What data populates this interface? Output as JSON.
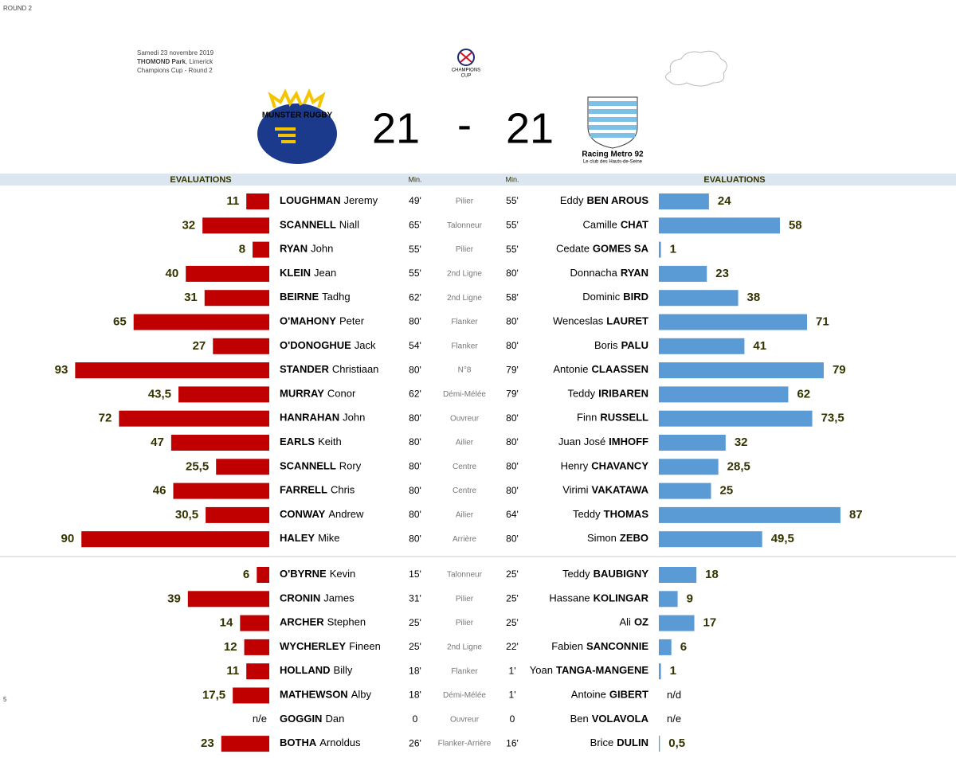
{
  "header": {
    "round": "ROUND 2",
    "date": "Samedi 23 novembre 2019",
    "venue_bold": "THOMOND Park",
    "venue_rest": ", Limerick",
    "competition": "Champions Cup - Round 2",
    "home_logo_text": "MUNSTER RUGBY",
    "cup_logo_text_1": "CHAMPIONS",
    "cup_logo_text_2": "CUP",
    "away_logo_text_1": "Racing Metro 92",
    "away_logo_text_2": "Le club des Hauts-de-Seine",
    "home_score": 21,
    "separator": "-",
    "away_score": 21
  },
  "columns": {
    "home_ratings": "EVALUATIONS",
    "home_min": "Min.",
    "away_min": "Min.",
    "away_ratings": "EVALUATIONS"
  },
  "page_number": "5",
  "starters": [
    {
      "home_rating": 11,
      "home_last": "LOUGHMAN",
      "home_first": "Jeremy",
      "home_min": "49'",
      "position": "Pilier",
      "away_min": "55'",
      "away_first": "Eddy",
      "away_last": "BEN AROUS",
      "away_rating": 24
    },
    {
      "home_rating": 32,
      "home_last": "SCANNELL",
      "home_first": "Niall",
      "home_min": "65'",
      "position": "Talonneur",
      "away_min": "55'",
      "away_first": "Camille",
      "away_last": "CHAT",
      "away_rating": 58
    },
    {
      "home_rating": 8,
      "home_last": "RYAN",
      "home_first": "John",
      "home_min": "55'",
      "position": "Pilier",
      "away_min": "55'",
      "away_first": "Cedate",
      "away_last": "GOMES SA",
      "away_rating": 1
    },
    {
      "home_rating": 40,
      "home_last": "KLEIN",
      "home_first": "Jean",
      "home_min": "55'",
      "position": "2nd Ligne",
      "away_min": "80'",
      "away_first": "Donnacha",
      "away_last": "RYAN",
      "away_rating": 23
    },
    {
      "home_rating": 31,
      "home_last": "BEIRNE",
      "home_first": "Tadhg",
      "home_min": "62'",
      "position": "2nd Ligne",
      "away_min": "58'",
      "away_first": "Dominic",
      "away_last": "BIRD",
      "away_rating": 38
    },
    {
      "home_rating": 65,
      "home_last": "O'MAHONY",
      "home_first": "Peter",
      "home_min": "80'",
      "position": "Flanker",
      "away_min": "80'",
      "away_first": "Wenceslas",
      "away_last": "LAURET",
      "away_rating": 71
    },
    {
      "home_rating": 27,
      "home_last": "O'DONOGHUE",
      "home_first": "Jack",
      "home_min": "54'",
      "position": "Flanker",
      "away_min": "80'",
      "away_first": "Boris",
      "away_last": "PALU",
      "away_rating": 41
    },
    {
      "home_rating": 93,
      "home_last": "STANDER",
      "home_first": "Christiaan",
      "home_min": "80'",
      "position": "N°8",
      "away_min": "79'",
      "away_first": "Antonie",
      "away_last": "CLAASSEN",
      "away_rating": 79
    },
    {
      "home_rating": {
        "value": 43.5,
        "label": "43,5"
      },
      "home_last": "MURRAY",
      "home_first": "Conor",
      "home_min": "62'",
      "position": "Démi-Mélée",
      "away_min": "79'",
      "away_first": "Teddy",
      "away_last": "IRIBAREN",
      "away_rating": 62
    },
    {
      "home_rating": 72,
      "home_last": "HANRAHAN",
      "home_first": "John",
      "home_min": "80'",
      "position": "Ouvreur",
      "away_min": "80'",
      "away_first": "Finn",
      "away_last": "RUSSELL",
      "away_rating": {
        "value": 73.5,
        "label": "73,5"
      }
    },
    {
      "home_rating": 47,
      "home_last": "EARLS",
      "home_first": "Keith",
      "home_min": "80'",
      "position": "Ailier",
      "away_min": "80'",
      "away_first": "Juan José",
      "away_last": "IMHOFF",
      "away_rating": 32
    },
    {
      "home_rating": {
        "value": 25.5,
        "label": "25,5"
      },
      "home_last": "SCANNELL",
      "home_first": "Rory",
      "home_min": "80'",
      "position": "Centre",
      "away_min": "80'",
      "away_first": "Henry",
      "away_last": "CHAVANCY",
      "away_rating": {
        "value": 28.5,
        "label": "28,5"
      }
    },
    {
      "home_rating": 46,
      "home_last": "FARRELL",
      "home_first": "Chris",
      "home_min": "80'",
      "position": "Centre",
      "away_min": "80'",
      "away_first": "Virimi",
      "away_last": "VAKATAWA",
      "away_rating": 25
    },
    {
      "home_rating": {
        "value": 30.5,
        "label": "30,5"
      },
      "home_last": "CONWAY",
      "home_first": "Andrew",
      "home_min": "80'",
      "position": "Ailier",
      "away_min": "64'",
      "away_first": "Teddy",
      "away_last": "THOMAS",
      "away_rating": 87
    },
    {
      "home_rating": 90,
      "home_last": "HALEY",
      "home_first": "Mike",
      "home_min": "80'",
      "position": "Arrière",
      "away_min": "80'",
      "away_first": "Simon",
      "away_last": "ZEBO",
      "away_rating": {
        "value": 49.5,
        "label": "49,5"
      }
    }
  ],
  "replacements": [
    {
      "home_rating": 6,
      "home_last": "O'BYRNE",
      "home_first": "Kevin",
      "home_min": "15'",
      "position": "Talonneur",
      "away_min": "25'",
      "away_first": "Teddy",
      "away_last": "BAUBIGNY",
      "away_rating": 18
    },
    {
      "home_rating": 39,
      "home_last": "CRONIN",
      "home_first": "James",
      "home_min": "31'",
      "position": "Pilier",
      "away_min": "25'",
      "away_first": "Hassane",
      "away_last": "KOLINGAR",
      "away_rating": 9
    },
    {
      "home_rating": 14,
      "home_last": "ARCHER",
      "home_first": "Stephen",
      "home_min": "25'",
      "position": "Pilier",
      "away_min": "25'",
      "away_first": "Ali",
      "away_last": "OZ",
      "away_rating": 17
    },
    {
      "home_rating": 12,
      "home_last": "WYCHERLEY",
      "home_first": "Fineen",
      "home_min": "25'",
      "position": "2nd Ligne",
      "away_min": "22'",
      "away_first": "Fabien",
      "away_last": "SANCONNIE",
      "away_rating": 6
    },
    {
      "home_rating": 11,
      "home_last": "HOLLAND",
      "home_first": "Billy",
      "home_min": "18'",
      "position": "Flanker",
      "away_min": "1'",
      "away_first": "Yoan",
      "away_last": "TANGA-MANGENE",
      "away_rating": 1
    },
    {
      "home_rating": {
        "value": 17.5,
        "label": "17,5"
      },
      "home_last": "MATHEWSON",
      "home_first": "Alby",
      "home_min": "18'",
      "position": "Démi-Mélée",
      "away_min": "1'",
      "away_first": "Antoine",
      "away_last": "GIBERT",
      "away_rating": "n/d"
    },
    {
      "home_rating": "n/e",
      "home_last": "GOGGIN",
      "home_first": "Dan",
      "home_min": "0",
      "position": "Ouvreur",
      "away_min": "0",
      "away_first": "Ben",
      "away_last": "VOLAVOLA",
      "away_rating": "n/e"
    },
    {
      "home_rating": 23,
      "home_last": "BOTHA",
      "home_first": "Arnoldus",
      "home_min": "26'",
      "position": "Flanker-Arrière",
      "away_min": "16'",
      "away_first": "Brice",
      "away_last": "DULIN",
      "away_rating": {
        "value": 0.5,
        "label": "0,5"
      }
    }
  ]
}
